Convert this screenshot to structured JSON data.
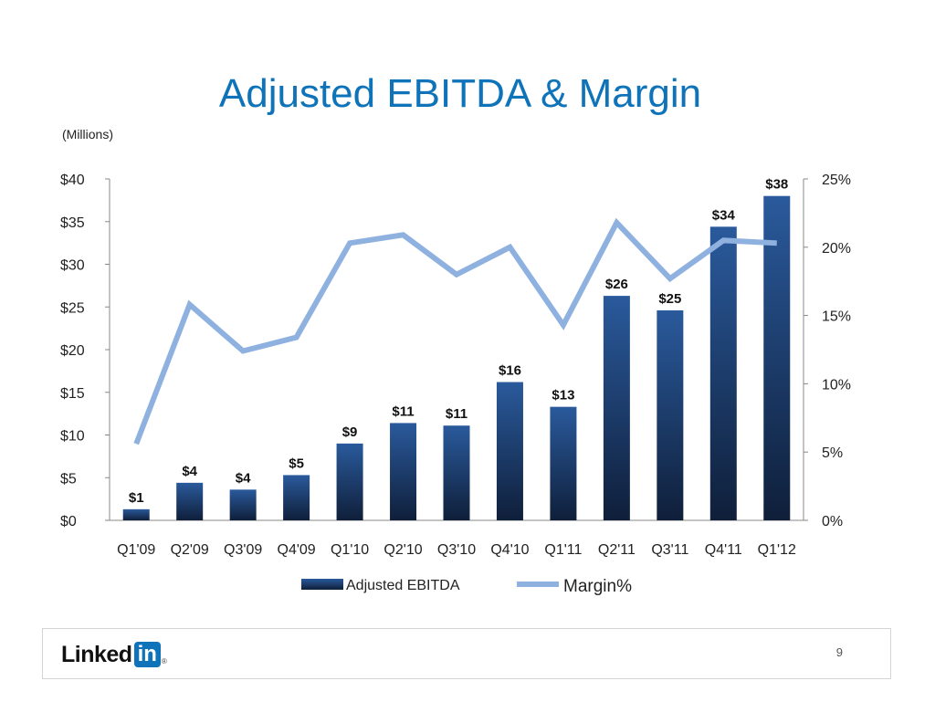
{
  "slide": {
    "title": "Adjusted EBITDA & Margin",
    "units": "(Millions)",
    "page_number": "9"
  },
  "logo": {
    "text_left": "Linked",
    "text_right": "in",
    "reg_mark": "®"
  },
  "colors": {
    "title": "#0e73b9",
    "bar_top": "#2a5a9c",
    "bar_bottom": "#0f1f3a",
    "line": "#8fb1e0",
    "logo_blue": "#0e73b9"
  },
  "chart_data": {
    "type": "bar",
    "title": "Adjusted EBITDA & Margin",
    "ylabel": "(Millions)",
    "categories": [
      "Q1'09",
      "Q2'09",
      "Q3'09",
      "Q4'09",
      "Q1'10",
      "Q2'10",
      "Q3'10",
      "Q4'10",
      "Q1'11",
      "Q2'11",
      "Q3'11",
      "Q4'11",
      "Q1'12"
    ],
    "series": [
      {
        "name": "Adjusted EBITDA",
        "type": "bar",
        "axis": "left",
        "values": [
          1.3,
          4.4,
          3.6,
          5.3,
          9.0,
          11.4,
          11.1,
          16.2,
          13.3,
          26.3,
          24.6,
          34.4,
          38.0
        ],
        "labels": [
          "$1",
          "$4",
          "$4",
          "$5",
          "$9",
          "$11",
          "$11",
          "$16",
          "$13",
          "$26",
          "$25",
          "$34",
          "$38"
        ]
      },
      {
        "name": "Margin%",
        "type": "line",
        "axis": "right",
        "values": [
          5.6,
          15.8,
          12.4,
          13.4,
          20.3,
          20.9,
          18.0,
          20.0,
          14.3,
          21.8,
          17.7,
          20.5,
          20.3
        ]
      }
    ],
    "y_left": {
      "min": 0,
      "max": 40,
      "ticks": [
        0,
        5,
        10,
        15,
        20,
        25,
        30,
        35,
        40
      ],
      "tick_labels": [
        "$0",
        "$5",
        "$10",
        "$15",
        "$20",
        "$25",
        "$30",
        "$35",
        "$40"
      ]
    },
    "y_right": {
      "min": 0,
      "max": 25,
      "ticks": [
        0,
        5,
        10,
        15,
        20,
        25
      ],
      "tick_labels": [
        "0%",
        "5%",
        "10%",
        "15%",
        "20%",
        "25%"
      ]
    },
    "legend": {
      "position": "bottom",
      "entries": [
        "Adjusted EBITDA",
        "Margin%"
      ]
    },
    "grid": false
  }
}
